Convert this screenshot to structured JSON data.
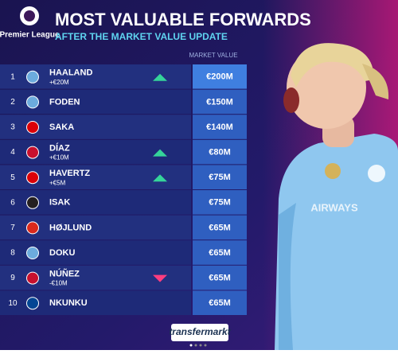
{
  "header": {
    "league": "Premier League",
    "title": "MOST VALUABLE FORWARDS",
    "subtitle": "AFTER THE MARKET VALUE UPDATE"
  },
  "table": {
    "value_header": "MARKET VALUE",
    "rows": [
      {
        "rank": 1,
        "name": "HAALAND",
        "change": "+€20M",
        "value": "€200M",
        "trend": "up",
        "crest": "#6cabdd"
      },
      {
        "rank": 2,
        "name": "FODEN",
        "value": "€150M",
        "crest": "#6cabdd"
      },
      {
        "rank": 3,
        "name": "SAKA",
        "value": "€140M",
        "crest": "#db0007"
      },
      {
        "rank": 4,
        "name": "DÍAZ",
        "change": "+€10M",
        "value": "€80M",
        "trend": "up",
        "crest": "#c8102e"
      },
      {
        "rank": 5,
        "name": "HAVERTZ",
        "change": "+€5M",
        "value": "€75M",
        "trend": "up",
        "crest": "#db0007"
      },
      {
        "rank": 6,
        "name": "ISAK",
        "value": "€75M",
        "crest": "#241f20"
      },
      {
        "rank": 7,
        "name": "HØJLUND",
        "value": "€65M",
        "crest": "#da291c"
      },
      {
        "rank": 8,
        "name": "DOKU",
        "value": "€65M",
        "crest": "#6cabdd"
      },
      {
        "rank": 9,
        "name": "NÚÑEZ",
        "change": "-€10M",
        "value": "€65M",
        "trend": "down",
        "crest": "#c8102e"
      },
      {
        "rank": 10,
        "name": "NKUNKU",
        "value": "€65M",
        "crest": "#034694"
      }
    ]
  },
  "footer": {
    "logo": "transfermarkt"
  }
}
